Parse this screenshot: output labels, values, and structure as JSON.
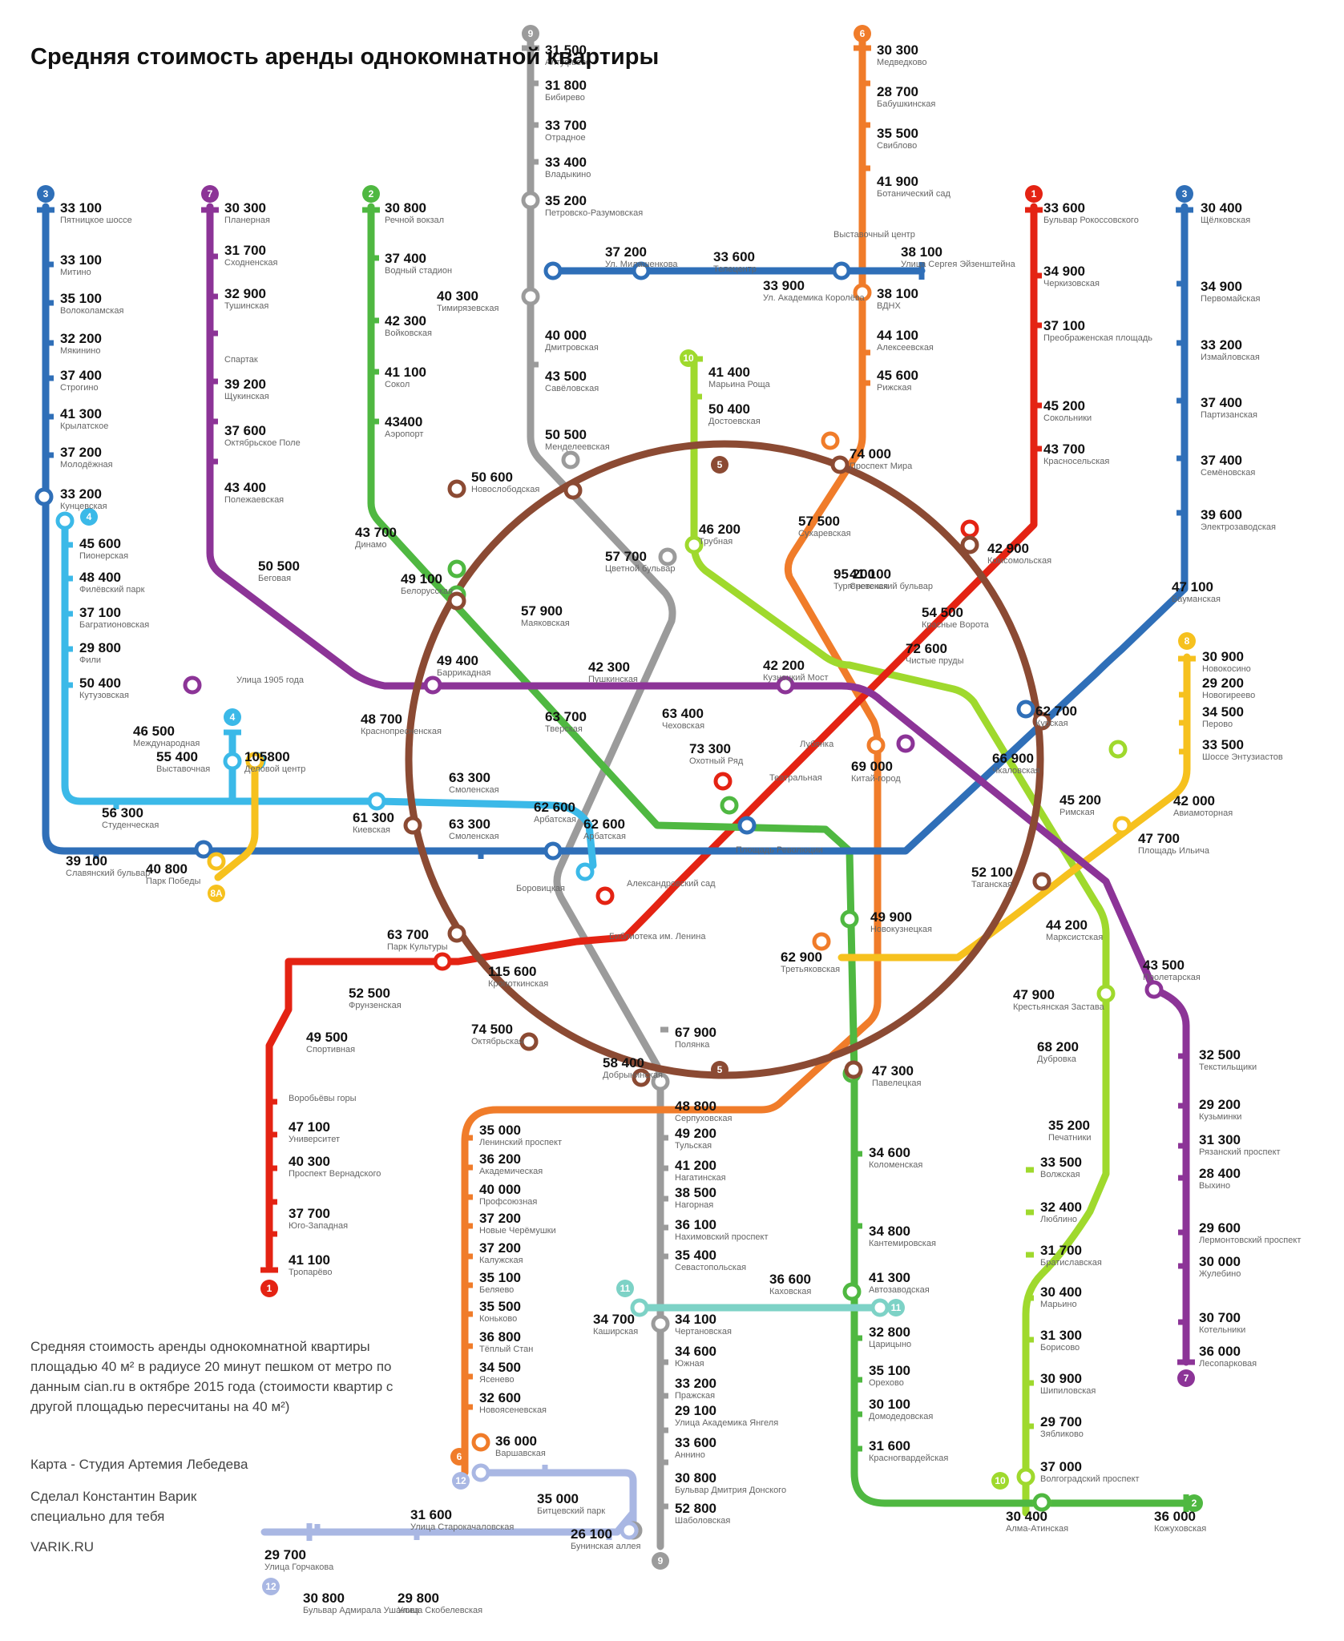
{
  "title": "Средняя стоимость аренды однокомнатной квартиры",
  "note": "Средняя стоимость аренды однокомнатной квартиры площадью 40 м² в радиусе 20 минут пешком от метро по данным cian.ru в октябре 2015 года (стоимости квартир с другой площадью пересчитаны на 40 м²)",
  "credit_studio": "Карта - Студия Артемия Лебедева",
  "credit_author": "Сделал Константин Варик специально для тебя",
  "credit_site": "VARIK.RU",
  "line_colors": {
    "1": "#e42313",
    "2": "#4fb841",
    "3": "#2f6fb8",
    "4": "#3bb9e8",
    "5": "#8b4a33",
    "6": "#f07c2a",
    "7": "#8c3497",
    "8": "#f6c11e",
    "8A": "#f6c11e",
    "9": "#9b9b9b",
    "10": "#9fd92d",
    "11": "#7dd2c6",
    "12": "#a9b7e3",
    "13": "#2f6fb8"
  },
  "line_labels": [
    {
      "id": "9",
      "label": "9",
      "line": "9"
    },
    {
      "id": "6",
      "label": "6",
      "line": "6"
    },
    {
      "id": "3a",
      "label": "3",
      "line": "3"
    },
    {
      "id": "7a",
      "label": "7",
      "line": "7"
    },
    {
      "id": "2a",
      "label": "2",
      "line": "2"
    },
    {
      "id": "1a",
      "label": "1",
      "line": "1"
    },
    {
      "id": "3b",
      "label": "3",
      "line": "3"
    },
    {
      "id": "4a",
      "label": "4",
      "line": "4"
    },
    {
      "id": "4b",
      "label": "4",
      "line": "4"
    },
    {
      "id": "10a",
      "label": "10",
      "line": "10"
    },
    {
      "id": "5a",
      "label": "5",
      "line": "5"
    },
    {
      "id": "5b",
      "label": "5",
      "line": "5"
    },
    {
      "id": "8",
      "label": "8",
      "line": "8"
    },
    {
      "id": "8A",
      "label": "8А",
      "line": "8A"
    },
    {
      "id": "1b",
      "label": "1",
      "line": "1"
    },
    {
      "id": "11a",
      "label": "11",
      "line": "11"
    },
    {
      "id": "11b",
      "label": "11",
      "line": "11"
    },
    {
      "id": "6b",
      "label": "6",
      "line": "6"
    },
    {
      "id": "12a",
      "label": "12",
      "line": "12"
    },
    {
      "id": "12b",
      "label": "12",
      "line": "12"
    },
    {
      "id": "9b",
      "label": "9",
      "line": "9"
    },
    {
      "id": "10b",
      "label": "10",
      "line": "10"
    },
    {
      "id": "2b",
      "label": "2",
      "line": "2"
    },
    {
      "id": "7b",
      "label": "7",
      "line": "7"
    }
  ],
  "stations": [
    {
      "price": "31 500",
      "name": "Алтуфьево"
    },
    {
      "price": "31 800",
      "name": "Бибирево"
    },
    {
      "price": "33 700",
      "name": "Отрадное"
    },
    {
      "price": "33 400",
      "name": "Владыкино"
    },
    {
      "price": "35 200",
      "name": "Петровско-Разумовская"
    },
    {
      "price": "40 300",
      "name": "Тимирязевская"
    },
    {
      "price": "40 000",
      "name": "Дмитровская"
    },
    {
      "price": "43 500",
      "name": "Савёловская"
    },
    {
      "price": "50 500",
      "name": "Менделеевская"
    },
    {
      "price": "30 300",
      "name": "Медведково"
    },
    {
      "price": "28 700",
      "name": "Бабушкинская"
    },
    {
      "price": "35 500",
      "name": "Свиблово"
    },
    {
      "price": "41 900",
      "name": "Ботанический сад"
    },
    {
      "price": "38 100",
      "name": "ВДНХ"
    },
    {
      "price": "44 100",
      "name": "Алексеевская"
    },
    {
      "price": "45 600",
      "name": "Рижская"
    },
    {
      "price": "74 000",
      "name": "Проспект Мира"
    },
    {
      "price": "37 200",
      "name": "Ул. Милашенкова"
    },
    {
      "price": "33 600",
      "name": "Телецентр"
    },
    {
      "price": "",
      "name": "Выставочный центр"
    },
    {
      "price": "38 100",
      "name": "Улица Сергея Эйзенштейна"
    },
    {
      "price": "33 900",
      "name": "Ул. Академика Королёва"
    },
    {
      "price": "33 100",
      "name": "Пятницкое шоссе"
    },
    {
      "price": "33 100",
      "name": "Митино"
    },
    {
      "price": "35 100",
      "name": "Волоколамская"
    },
    {
      "price": "32 200",
      "name": "Мякинино"
    },
    {
      "price": "37 400",
      "name": "Строгино"
    },
    {
      "price": "41 300",
      "name": "Крылатское"
    },
    {
      "price": "37 200",
      "name": "Молодёжная"
    },
    {
      "price": "33 200",
      "name": "Кунцевская"
    },
    {
      "price": "45 600",
      "name": "Пионерская"
    },
    {
      "price": "48 400",
      "name": "Филёвский парк"
    },
    {
      "price": "37 100",
      "name": "Багратионовская"
    },
    {
      "price": "29 800",
      "name": "Фили"
    },
    {
      "price": "50 400",
      "name": "Кутузовская"
    },
    {
      "price": "46 500",
      "name": "Международная"
    },
    {
      "price": "55 400",
      "name": "Выставочная"
    },
    {
      "price": "105800",
      "name": "Деловой центр"
    },
    {
      "price": "56 300",
      "name": "Студенческая"
    },
    {
      "price": "61 300",
      "name": "Киевская"
    },
    {
      "price": "39 100",
      "name": "Славянский бульвар"
    },
    {
      "price": "40 800",
      "name": "Парк Победы"
    },
    {
      "price": "30 300",
      "name": "Планерная"
    },
    {
      "price": "31 700",
      "name": "Сходненская"
    },
    {
      "price": "32 900",
      "name": "Тушинская"
    },
    {
      "price": "",
      "name": "Спартак"
    },
    {
      "price": "39 200",
      "name": "Щукинская"
    },
    {
      "price": "37 600",
      "name": "Октябрьское Поле"
    },
    {
      "price": "43 400",
      "name": "Полежаевская"
    },
    {
      "price": "50 500",
      "name": "Беговая"
    },
    {
      "price": "",
      "name": "Улица 1905 года"
    },
    {
      "price": "48 700",
      "name": "Краснопресненская"
    },
    {
      "price": "49 400",
      "name": "Баррикадная"
    },
    {
      "price": "30 800",
      "name": "Речной вокзал"
    },
    {
      "price": "37 400",
      "name": "Водный стадион"
    },
    {
      "price": "42 300",
      "name": "Войковская"
    },
    {
      "price": "41 100",
      "name": "Сокол"
    },
    {
      "price": "43400",
      "name": "Аэропорт"
    },
    {
      "price": "43 700",
      "name": "Динамо"
    },
    {
      "price": "49 100",
      "name": "Белорусская"
    },
    {
      "price": "57 900",
      "name": "Маяковская"
    },
    {
      "price": "50 600",
      "name": "Новослободская"
    },
    {
      "price": "57 700",
      "name": "Цветной бульвар"
    },
    {
      "price": "41 400",
      "name": "Марьина Роща"
    },
    {
      "price": "50 400",
      "name": "Достоевская"
    },
    {
      "price": "46 200",
      "name": "Трубная"
    },
    {
      "price": "57 500",
      "name": "Сухаревская"
    },
    {
      "price": "41 100",
      "name": "Сретенский бульвар"
    },
    {
      "price": "95 200",
      "name": "Тургеневская"
    },
    {
      "price": "54 500",
      "name": "Красные Ворота"
    },
    {
      "price": "72 600",
      "name": "Чистые пруды"
    },
    {
      "price": "42 900",
      "name": "Комсомольская"
    },
    {
      "price": "33 600",
      "name": "Бульвар Рокоссовского"
    },
    {
      "price": "34 900",
      "name": "Черкизовская"
    },
    {
      "price": "37 100",
      "name": "Преображенская площадь"
    },
    {
      "price": "45 200",
      "name": "Сокольники"
    },
    {
      "price": "43 700",
      "name": "Красносельская"
    },
    {
      "price": "30 400",
      "name": "Щёлковская"
    },
    {
      "price": "34 900",
      "name": "Первомайская"
    },
    {
      "price": "33 200",
      "name": "Измайловская"
    },
    {
      "price": "37 400",
      "name": "Партизанская"
    },
    {
      "price": "37 400",
      "name": "Семёновская"
    },
    {
      "price": "39 600",
      "name": "Электрозаводская"
    },
    {
      "price": "47 100",
      "name": "Бауманская"
    },
    {
      "price": "42 300",
      "name": "Пушкинская"
    },
    {
      "price": "63 700",
      "name": "Тверская"
    },
    {
      "price": "63 400",
      "name": "Чеховская"
    },
    {
      "price": "42 200",
      "name": "Кузнецкий Мост"
    },
    {
      "price": "",
      "name": "Лубянка"
    },
    {
      "price": "73 300",
      "name": "Охотный Ряд"
    },
    {
      "price": "",
      "name": "Театральная"
    },
    {
      "price": "69 000",
      "name": "Китай-город"
    },
    {
      "price": "62 700",
      "name": "Курская"
    },
    {
      "price": "66 900",
      "name": "Чкаловская"
    },
    {
      "price": "63 300",
      "name": "Смоленская"
    },
    {
      "price": "63 300",
      "name": "Смоленская"
    },
    {
      "price": "62 600",
      "name": "Арбатская"
    },
    {
      "price": "62 600",
      "name": "Арбатская"
    },
    {
      "price": "",
      "name": "Площадь Революции"
    },
    {
      "price": "",
      "name": "Боровицкая"
    },
    {
      "price": "",
      "name": "Александровский сад"
    },
    {
      "price": "",
      "name": "Библиотека им. Ленина"
    },
    {
      "price": "30 900",
      "name": "Новокосино"
    },
    {
      "price": "29 200",
      "name": "Новогиреево"
    },
    {
      "price": "34 500",
      "name": "Перово"
    },
    {
      "price": "33 500",
      "name": "Шоссе Энтузиастов"
    },
    {
      "price": "42 000",
      "name": "Авиамоторная"
    },
    {
      "price": "47 700",
      "name": "Площадь Ильича"
    },
    {
      "price": "45 200",
      "name": "Римская"
    },
    {
      "price": "52 100",
      "name": "Таганская"
    },
    {
      "price": "44 200",
      "name": "Марксистская"
    },
    {
      "price": "43 500",
      "name": "Пролетарская"
    },
    {
      "price": "47 900",
      "name": "Крестьянская Застава"
    },
    {
      "price": "68 200",
      "name": "Дубровка"
    },
    {
      "price": "63 700",
      "name": "Парк Культуры"
    },
    {
      "price": "115 600",
      "name": "Кропоткинская"
    },
    {
      "price": "52 500",
      "name": "Фрунзенская"
    },
    {
      "price": "49 500",
      "name": "Спортивная"
    },
    {
      "price": "",
      "name": "Воробьёвы горы"
    },
    {
      "price": "47 100",
      "name": "Университет"
    },
    {
      "price": "40 300",
      "name": "Проспект Вернадского"
    },
    {
      "price": "37 700",
      "name": "Юго-Западная"
    },
    {
      "price": "41 100",
      "name": "Тропарёво"
    },
    {
      "price": "49 900",
      "name": "Новокузнецкая"
    },
    {
      "price": "62 900",
      "name": "Третьяковская"
    },
    {
      "price": "74 500",
      "name": "Октябрьская"
    },
    {
      "price": "67 900",
      "name": "Полянка"
    },
    {
      "price": "58 400",
      "name": "Добрынинская"
    },
    {
      "price": "47 300",
      "name": "Павелецкая"
    },
    {
      "price": "48 800",
      "name": "Серпуховская"
    },
    {
      "price": "49 200",
      "name": "Тульская"
    },
    {
      "price": "41 200",
      "name": "Нагатинская"
    },
    {
      "price": "38 500",
      "name": "Нагорная"
    },
    {
      "price": "36 100",
      "name": "Нахимовский проспект"
    },
    {
      "price": "35 400",
      "name": "Севастопольская"
    },
    {
      "price": "34 100",
      "name": "Чертановская"
    },
    {
      "price": "34 600",
      "name": "Южная"
    },
    {
      "price": "33 200",
      "name": "Пражская"
    },
    {
      "price": "29 100",
      "name": "Улица Академика Янгеля"
    },
    {
      "price": "33 600",
      "name": "Аннино"
    },
    {
      "price": "30 800",
      "name": "Бульвар Дмитрия Донского"
    },
    {
      "price": "52 800",
      "name": "Шаболовская"
    },
    {
      "price": "35 000",
      "name": "Ленинский проспект"
    },
    {
      "price": "36 200",
      "name": "Академическая"
    },
    {
      "price": "40 000",
      "name": "Профсоюзная"
    },
    {
      "price": "37 200",
      "name": "Новые Черёмушки"
    },
    {
      "price": "37 200",
      "name": "Калужская"
    },
    {
      "price": "35 100",
      "name": "Беляево"
    },
    {
      "price": "35 500",
      "name": "Коньково"
    },
    {
      "price": "36 800",
      "name": "Тёплый Стан"
    },
    {
      "price": "34 500",
      "name": "Ясенево"
    },
    {
      "price": "32 600",
      "name": "Новоясеневская"
    },
    {
      "price": "36 000",
      "name": "Варшавская"
    },
    {
      "price": "36 600",
      "name": "Каховская"
    },
    {
      "price": "34 700",
      "name": "Каширская"
    },
    {
      "price": "41 300",
      "name": "Автозаводская"
    },
    {
      "price": "34 600",
      "name": "Коломенская"
    },
    {
      "price": "34 800",
      "name": "Кантемировская"
    },
    {
      "price": "32 800",
      "name": "Царицыно"
    },
    {
      "price": "35 100",
      "name": "Орехово"
    },
    {
      "price": "30 100",
      "name": "Домодедовская"
    },
    {
      "price": "31 600",
      "name": "Красногвардейская"
    },
    {
      "price": "30 400",
      "name": "Алма-Атинская"
    },
    {
      "price": "36 000",
      "name": "Кожуховская"
    },
    {
      "price": "35 200",
      "name": "Печатники"
    },
    {
      "price": "33 500",
      "name": "Волжская"
    },
    {
      "price": "32 400",
      "name": "Люблино"
    },
    {
      "price": "31 700",
      "name": "Братиславская"
    },
    {
      "price": "30 400",
      "name": "Марьино"
    },
    {
      "price": "31 300",
      "name": "Борисово"
    },
    {
      "price": "30 900",
      "name": "Шипиловская"
    },
    {
      "price": "29 700",
      "name": "Зябликово"
    },
    {
      "price": "37 000",
      "name": "Волгоградский проспект"
    },
    {
      "price": "32 500",
      "name": "Текстильщики"
    },
    {
      "price": "29 200",
      "name": "Кузьминки"
    },
    {
      "price": "31 300",
      "name": "Рязанский проспект"
    },
    {
      "price": "28 400",
      "name": "Выхино"
    },
    {
      "price": "29 600",
      "name": "Лермонтовский проспект"
    },
    {
      "price": "30 000",
      "name": "Жулебино"
    },
    {
      "price": "30 700",
      "name": "Котельники"
    },
    {
      "price": "36 000",
      "name": "Лесопарковая"
    },
    {
      "price": "35 000",
      "name": "Битцевский парк"
    },
    {
      "price": "31 600",
      "name": "Улица Старокачаловская"
    },
    {
      "price": "26 100",
      "name": "Бунинская аллея"
    },
    {
      "price": "29 700",
      "name": "Улица Горчакова"
    },
    {
      "price": "30 800",
      "name": "Бульвар Адмирала Ушакова"
    },
    {
      "price": "29 800",
      "name": "Улица Скобелевская"
    }
  ]
}
